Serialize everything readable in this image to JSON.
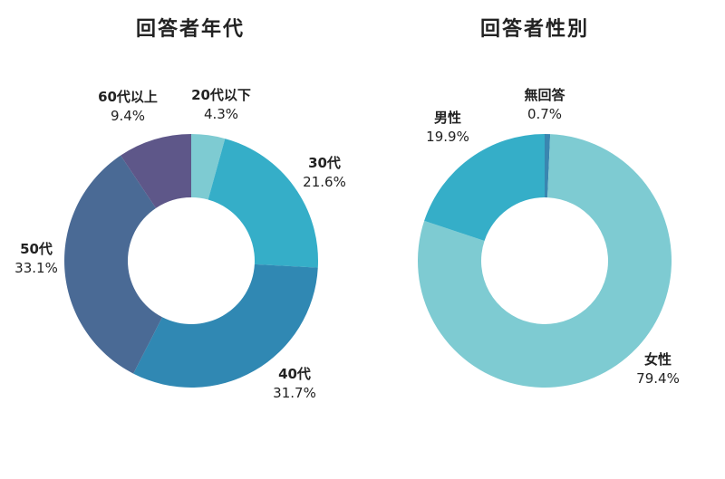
{
  "chart_data": [
    {
      "type": "pie",
      "variant": "donut",
      "title": "回答者年代",
      "categories": [
        "20代以下",
        "30代",
        "40代",
        "50代",
        "60代以上"
      ],
      "values": [
        4.3,
        21.6,
        31.7,
        33.1,
        9.4
      ],
      "value_labels": [
        "4.3%",
        "21.6%",
        "31.7%",
        "33.1%",
        "9.4%"
      ],
      "colors": [
        "#7ecbd2",
        "#35aec8",
        "#3088b3",
        "#4a6a95",
        "#5e5789"
      ],
      "start": "12 o'clock, clockwise",
      "legend": "none (labels beside slices)"
    },
    {
      "type": "pie",
      "variant": "donut",
      "title": "回答者性別",
      "categories": [
        "無回答",
        "女性",
        "男性"
      ],
      "values": [
        0.7,
        79.4,
        19.9
      ],
      "value_labels": [
        "0.7%",
        "79.4%",
        "19.9%"
      ],
      "colors": [
        "#3a86b0",
        "#7ecbd2",
        "#35aec8"
      ],
      "start": "12 o'clock, clockwise",
      "legend": "none (labels beside slices)"
    }
  ]
}
